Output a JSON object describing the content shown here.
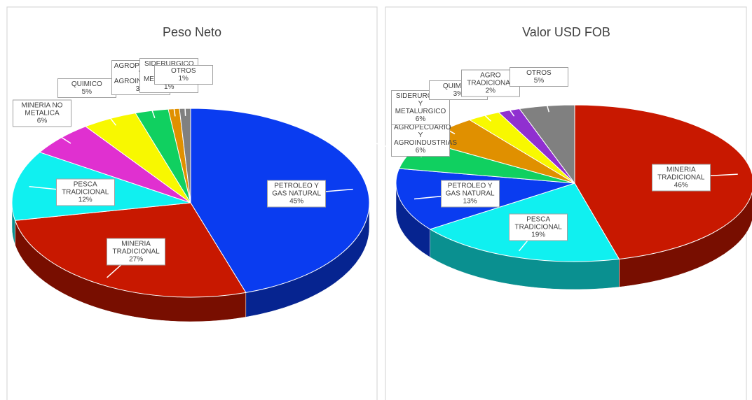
{
  "chart_data": [
    {
      "type": "pie",
      "title": "Peso Neto",
      "categories": [
        "PETROLEO Y GAS NATURAL",
        "MINERIA TRADICIONAL",
        "PESCA TRADICIONAL",
        "MINERIA NO METALICA",
        "QUIMICO",
        "AGROPECUARIO Y AGROINDUSTRIAS",
        "SIDERURGICO Y METALURGICO",
        "OTROS"
      ],
      "values": [
        45,
        27,
        12,
        6,
        5,
        3,
        1,
        1
      ],
      "value_labels": [
        "45%",
        "27%",
        "12%",
        "6%",
        "5%",
        "3%",
        "1%",
        "1%"
      ],
      "colors": [
        "#0a3cf0",
        "#c81800",
        "#10f0f0",
        "#e030d0",
        "#f8f800",
        "#10d060",
        "#e09000",
        "#808080"
      ]
    },
    {
      "type": "pie",
      "title": "Valor USD FOB",
      "categories": [
        "MINERIA TRADICIONAL",
        "PESCA TRADICIONAL",
        "PETROLEO Y GAS NATURAL",
        "AGROPECUARIO Y AGROINDUSTRIAS",
        "SIDERURGICO Y METALURGICO",
        "QUIMICO",
        "AGRO TRADICIONAL",
        "OTROS"
      ],
      "values": [
        46,
        19,
        13,
        6,
        6,
        3,
        2,
        5
      ],
      "value_labels": [
        "46%",
        "19%",
        "13%",
        "6%",
        "6%",
        "3%",
        "2%",
        "5%"
      ],
      "colors": [
        "#c81800",
        "#10f0f0",
        "#0a3cf0",
        "#10d060",
        "#e09000",
        "#f8f800",
        "#9030d0",
        "#808080"
      ]
    }
  ]
}
